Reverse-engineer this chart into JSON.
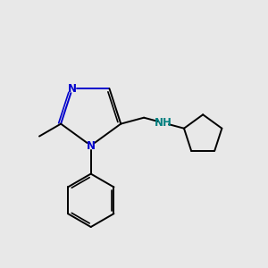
{
  "background_color": "#e8e8e8",
  "bond_color": "#000000",
  "N_color": "#0000cc",
  "NH_color": "#008080",
  "lw": 1.4,
  "lwd": 1.2,
  "fs": 8.5,
  "figsize": [
    3.0,
    3.0
  ],
  "dpi": 100,
  "xlim": [
    0.5,
    8.5
  ],
  "ylim": [
    1.8,
    8.2
  ]
}
